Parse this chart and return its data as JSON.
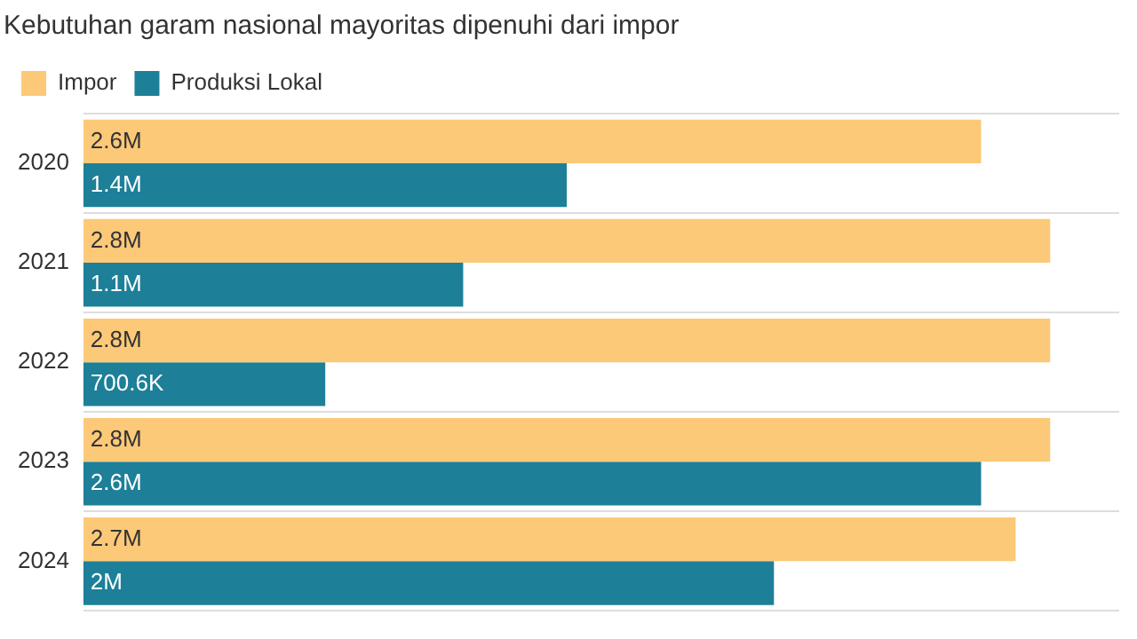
{
  "chart_data": {
    "type": "bar",
    "orientation": "horizontal",
    "title": "Kebutuhan garam nasional mayoritas dipenuhi dari impor",
    "categories": [
      "2020",
      "2021",
      "2022",
      "2023",
      "2024"
    ],
    "series": [
      {
        "name": "Impor",
        "color": "#fcc978",
        "values": [
          2600000,
          2800000,
          2800000,
          2800000,
          2700000
        ],
        "value_labels": [
          "2.6M",
          "2.8M",
          "2.8M",
          "2.8M",
          "2.7M"
        ]
      },
      {
        "name": "Produksi Lokal",
        "color": "#1d7f98",
        "values": [
          1400000,
          1100000,
          700600,
          2600000,
          2000000
        ],
        "value_labels": [
          "1.4M",
          "1.1M",
          "700.6K",
          "2.6M",
          "2M"
        ]
      }
    ],
    "legend": "top left",
    "grid": "y"
  }
}
